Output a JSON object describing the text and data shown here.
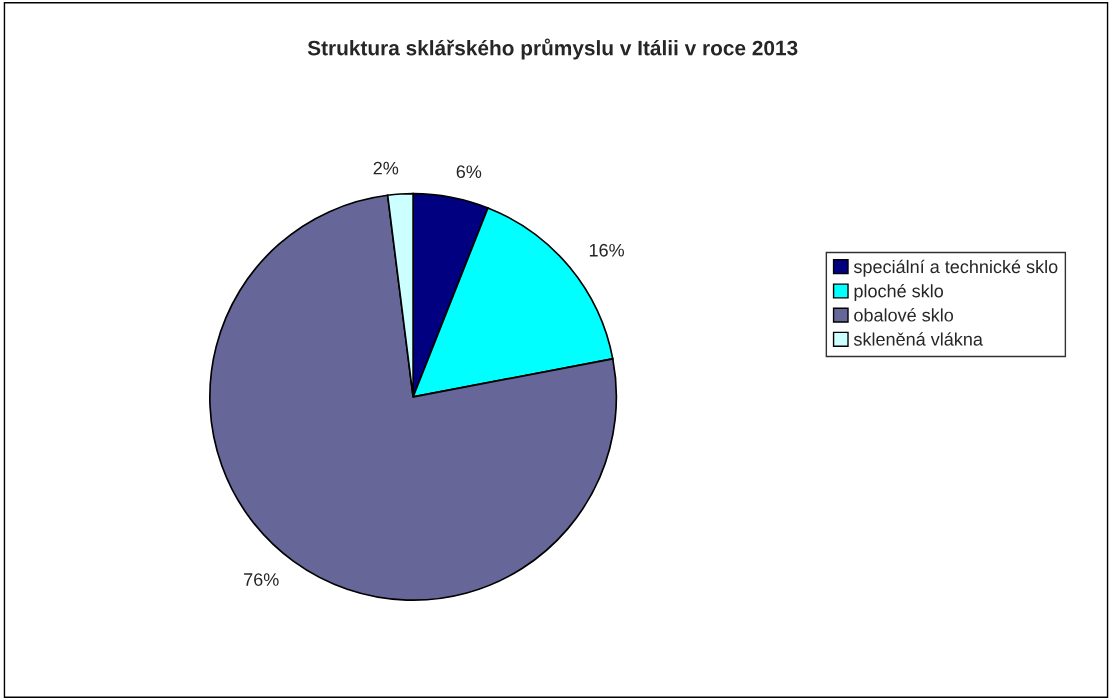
{
  "chart_data": {
    "type": "pie",
    "title": "Struktura sklářského průmyslu v Itálii v roce 2013",
    "categories": [
      "speciální a technické sklo",
      "ploché sklo",
      "obalové sklo",
      "skleněná vlákna"
    ],
    "values": [
      6,
      16,
      76,
      2
    ],
    "colors": [
      "#000080",
      "#00ffff",
      "#666699",
      "#ccffff"
    ],
    "value_labels": [
      "6%",
      "16%",
      "76%",
      "2%"
    ],
    "legend": "right"
  }
}
